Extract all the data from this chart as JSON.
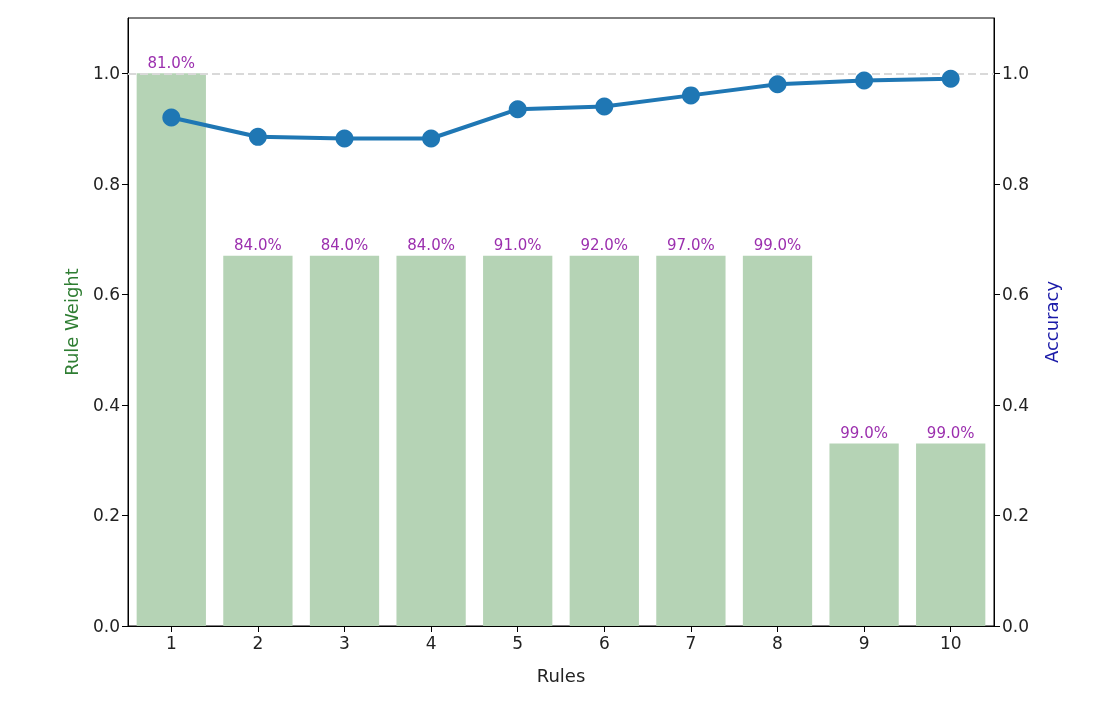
{
  "chart_data": {
    "type": "bar",
    "xlabel": "Rules",
    "ylabel": "Rule Weight",
    "y2label": "Accuracy",
    "categories": [
      "1",
      "2",
      "3",
      "4",
      "5",
      "6",
      "7",
      "8",
      "9",
      "10"
    ],
    "series": [
      {
        "color": "#b5d3b5",
        "values": [
          1.0,
          0.67,
          0.67,
          0.67,
          0.67,
          0.67,
          0.67,
          0.67,
          0.33,
          0.33
        ]
      },
      {
        "type": "line",
        "axis": "y2",
        "color": "#1f77b4",
        "values": [
          0.92,
          0.885,
          0.882,
          0.882,
          0.935,
          0.94,
          0.96,
          0.98,
          0.987,
          0.99
        ]
      }
    ],
    "ylim": [
      0,
      1.1
    ],
    "yticks": [
      {
        "value": 0,
        "label": "0.0"
      },
      0.2,
      0.4,
      0.6,
      0.8,
      {
        "value": 1,
        "label": "1.0"
      }
    ],
    "y2lim": [
      0,
      1.1
    ],
    "y2ticks": [
      {
        "value": 0,
        "label": "0.0"
      },
      0.2,
      0.4,
      0.6,
      0.8,
      {
        "value": 1,
        "label": "1.0"
      }
    ],
    "ref_lines": [
      {
        "axis": "y",
        "value": 1.0,
        "color": "#d9d9d9",
        "line_style": "dashed"
      }
    ],
    "annotations": [
      {
        "text": "81.0%",
        "x": "1",
        "y": 1.0
      },
      {
        "text": "84.0%",
        "x": "2",
        "y": 0.67
      },
      {
        "text": "84.0%",
        "x": "3",
        "y": 0.67
      },
      {
        "text": "84.0%",
        "x": "4",
        "y": 0.67
      },
      {
        "text": "91.0%",
        "x": "5",
        "y": 0.67
      },
      {
        "text": "92.0%",
        "x": "6",
        "y": 0.67
      },
      {
        "text": "97.0%",
        "x": "7",
        "y": 0.67
      },
      {
        "text": "99.0%",
        "x": "8",
        "y": 0.67
      },
      {
        "text": "99.0%",
        "x": "9",
        "y": 0.33
      },
      {
        "text": "99.0%",
        "x": "10",
        "y": 0.33
      }
    ],
    "marker": "circle",
    "line_style": "solid",
    "grid": false
  }
}
